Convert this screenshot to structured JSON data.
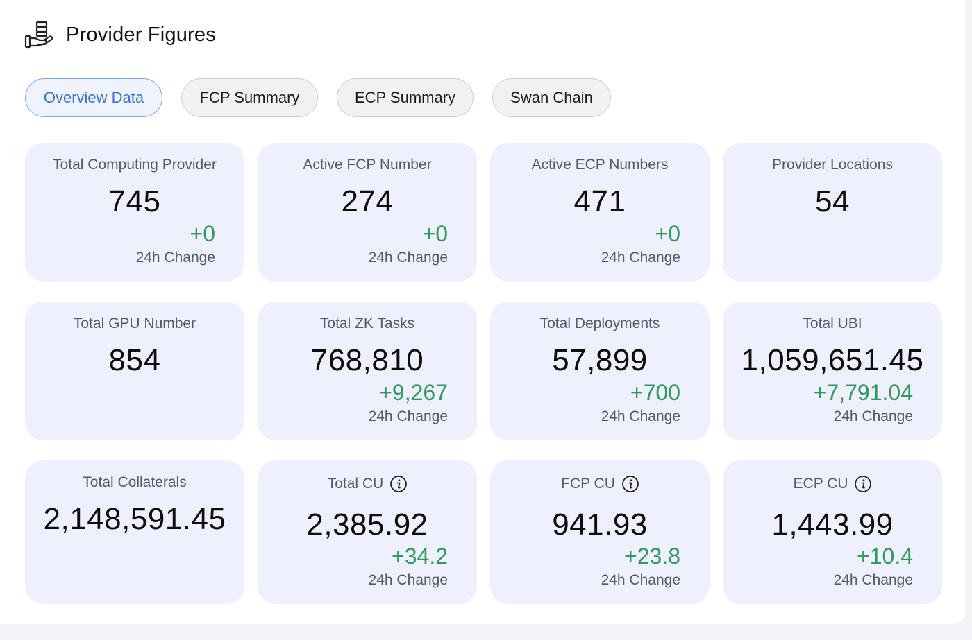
{
  "header": {
    "title": "Provider Figures",
    "icon": "provider-hand-icon"
  },
  "tabs": [
    {
      "label": "Overview Data",
      "active": true
    },
    {
      "label": "FCP Summary",
      "active": false
    },
    {
      "label": "ECP Summary",
      "active": false
    },
    {
      "label": "Swan Chain",
      "active": false
    }
  ],
  "colors": {
    "accent": "#3a72dd",
    "positive": "#2f9b5a",
    "card_bg": "#eef1fd"
  },
  "cards": [
    {
      "label": "Total Computing Provider",
      "value": "745",
      "change": "+0",
      "change_label": "24h Change"
    },
    {
      "label": "Active FCP Number",
      "value": "274",
      "change": "+0",
      "change_label": "24h Change"
    },
    {
      "label": "Active ECP Numbers",
      "value": "471",
      "change": "+0",
      "change_label": "24h Change"
    },
    {
      "label": "Provider Locations",
      "value": "54"
    },
    {
      "label": "Total GPU Number",
      "value": "854"
    },
    {
      "label": "Total ZK Tasks",
      "value": "768,810",
      "change": "+9,267",
      "change_label": "24h Change"
    },
    {
      "label": "Total Deployments",
      "value": "57,899",
      "change": "+700",
      "change_label": "24h Change"
    },
    {
      "label": "Total UBI",
      "value": "1,059,651.45",
      "change": "+7,791.04",
      "change_label": "24h Change"
    },
    {
      "label": "Total Collaterals",
      "value": "2,148,591.45"
    },
    {
      "label": "Total CU",
      "value": "2,385.92",
      "change": "+34.2",
      "change_label": "24h Change",
      "info": true
    },
    {
      "label": "FCP CU",
      "value": "941.93",
      "change": "+23.8",
      "change_label": "24h Change",
      "info": true
    },
    {
      "label": "ECP CU",
      "value": "1,443.99",
      "change": "+10.4",
      "change_label": "24h Change",
      "info": true
    }
  ]
}
